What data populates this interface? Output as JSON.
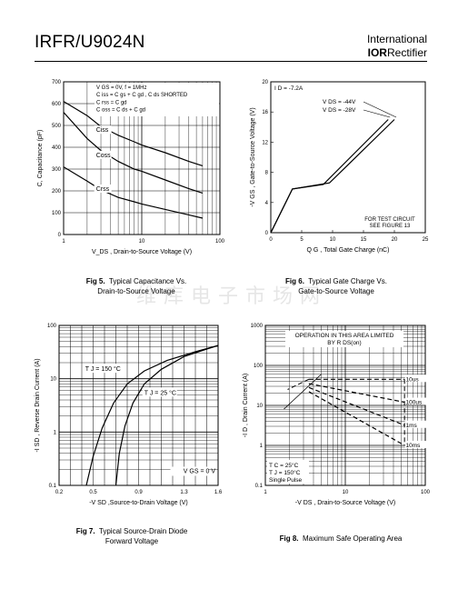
{
  "header": {
    "part_number": "IRFR/U9024N",
    "brand_line1": "International",
    "brand_logo": "IOR",
    "brand_line2": "Rectifier"
  },
  "watermark": "维库电子市场网",
  "figures": [
    {
      "caption_bold": "Fig 5.",
      "caption_text": "Typical Capacitance Vs.",
      "caption_text2": "Drain-to-Source Voltage"
    },
    {
      "caption_bold": "Fig 6.",
      "caption_text": "Typical Gate Charge Vs.",
      "caption_text2": "Gate-to-Source Voltage"
    },
    {
      "caption_bold": "Fig 7.",
      "caption_text": "Typical Source-Drain Diode",
      "caption_text2": "Forward Voltage"
    },
    {
      "caption_bold": "Fig 8.",
      "caption_text": "Maximum Safe Operating Area",
      "caption_text2": ""
    }
  ],
  "chart_data": [
    {
      "type": "line",
      "xlabel": "V_DS , Drain-to-Source Voltage (V)",
      "ylabel": "C, Capacitance (pF)",
      "xscale": "log",
      "xlim": [
        1,
        100
      ],
      "ylim": [
        0,
        700
      ],
      "xticks": [
        "1",
        "10",
        "100"
      ],
      "yticks": [
        "0",
        "100",
        "200",
        "300",
        "400",
        "500",
        "600",
        "700"
      ],
      "grid": true,
      "legend_lines": [
        "V GS = 0V,        f = 1MHz",
        "C iss = C gs + C gd ,  C ds  SHORTED",
        "C rss = C gd",
        "C oss = C ds + C gd"
      ],
      "series": [
        {
          "name": "Ciss",
          "x": [
            1,
            2,
            3,
            5,
            8,
            10,
            20,
            40,
            60
          ],
          "y": [
            610,
            545,
            495,
            455,
            425,
            410,
            375,
            335,
            315
          ]
        },
        {
          "name": "Coss",
          "x": [
            1,
            2,
            3,
            5,
            8,
            10,
            20,
            40,
            60
          ],
          "y": [
            560,
            440,
            385,
            335,
            300,
            290,
            250,
            210,
            190
          ]
        },
        {
          "name": "Crss",
          "x": [
            1,
            2,
            3,
            5,
            8,
            10,
            20,
            40,
            60
          ],
          "y": [
            310,
            245,
            205,
            170,
            150,
            140,
            115,
            90,
            75
          ]
        }
      ]
    },
    {
      "type": "line",
      "xlabel": "Q G , Total Gate Charge (nC)",
      "ylabel": "-V GS , Gate-to-Source Voltage (V)",
      "xlim": [
        0,
        25
      ],
      "ylim": [
        0,
        20
      ],
      "xticks": [
        "0",
        "5",
        "10",
        "15",
        "20",
        "25"
      ],
      "yticks": [
        "0",
        "4",
        "8",
        "12",
        "16",
        "20"
      ],
      "grid": false,
      "annotation_id": "I D = -7.2A",
      "annotation_test": [
        "FOR TEST CIRCUIT",
        "SEE FIGURE 13"
      ],
      "series": [
        {
          "name": "V DS = -44V",
          "x": [
            0,
            3.5,
            9.5,
            20
          ],
          "y": [
            0,
            5.8,
            6.6,
            15
          ]
        },
        {
          "name": "V DS = -28V",
          "x": [
            0,
            3.5,
            8.5,
            19
          ],
          "y": [
            0,
            5.8,
            6.4,
            15
          ]
        }
      ]
    },
    {
      "type": "line",
      "xlabel": "-V SD ,Source-to-Drain Voltage (V)",
      "ylabel": "-I SD , Reverse Drain Current (A)",
      "yscale": "log",
      "xlim": [
        0.2,
        1.6
      ],
      "ylim": [
        0.1,
        100
      ],
      "xticks": [
        "0.2",
        "0.5",
        "0.9",
        "1.3",
        "1.6"
      ],
      "yticks": [
        "0.1",
        "1",
        "10",
        "100"
      ],
      "grid": true,
      "annotation_vgs": "V GS = 0 V",
      "series": [
        {
          "name": "T J = 150 °C",
          "x": [
            0.44,
            0.5,
            0.58,
            0.68,
            0.8,
            0.95,
            1.15,
            1.4,
            1.6
          ],
          "y": [
            0.1,
            0.35,
            1.2,
            3.5,
            8,
            14,
            22,
            32,
            42
          ]
        },
        {
          "name": "T J = 25 °C",
          "x": [
            0.7,
            0.73,
            0.78,
            0.85,
            0.95,
            1.1,
            1.3,
            1.5,
            1.6
          ],
          "y": [
            0.1,
            0.4,
            1.3,
            3.5,
            8,
            15,
            26,
            36,
            42
          ]
        }
      ]
    },
    {
      "type": "line",
      "xlabel": "-V DS , Drain-to-Source Voltage (V)",
      "ylabel": "-I D , Drain Current (A)",
      "xscale": "log",
      "yscale": "log",
      "xlim": [
        1,
        100
      ],
      "ylim": [
        0.1,
        1000
      ],
      "xticks": [
        "1",
        "10",
        "100"
      ],
      "yticks": [
        "0.1",
        "1",
        "10",
        "100",
        "1000"
      ],
      "grid": true,
      "annotation_limit": [
        "OPERATION IN THIS AREA LIMITED",
        "BY R DS(on)"
      ],
      "annotation_cond": [
        "T C = 25°C",
        "T J = 150°C",
        "Single Pulse"
      ],
      "limit_line": {
        "x": [
          1.7,
          5
        ],
        "y": [
          8,
          60
        ]
      },
      "series": [
        {
          "name": "10us",
          "x": [
            3.5,
            55
          ],
          "y": [
            45,
            45
          ]
        },
        {
          "name": "100us",
          "x": [
            3.5,
            55
          ],
          "y": [
            35,
            12
          ]
        },
        {
          "name": "1ms",
          "x": [
            3.5,
            55
          ],
          "y": [
            28,
            3.2
          ]
        },
        {
          "name": "10ms",
          "x": [
            3.5,
            55
          ],
          "y": [
            22,
            1
          ]
        }
      ]
    }
  ]
}
